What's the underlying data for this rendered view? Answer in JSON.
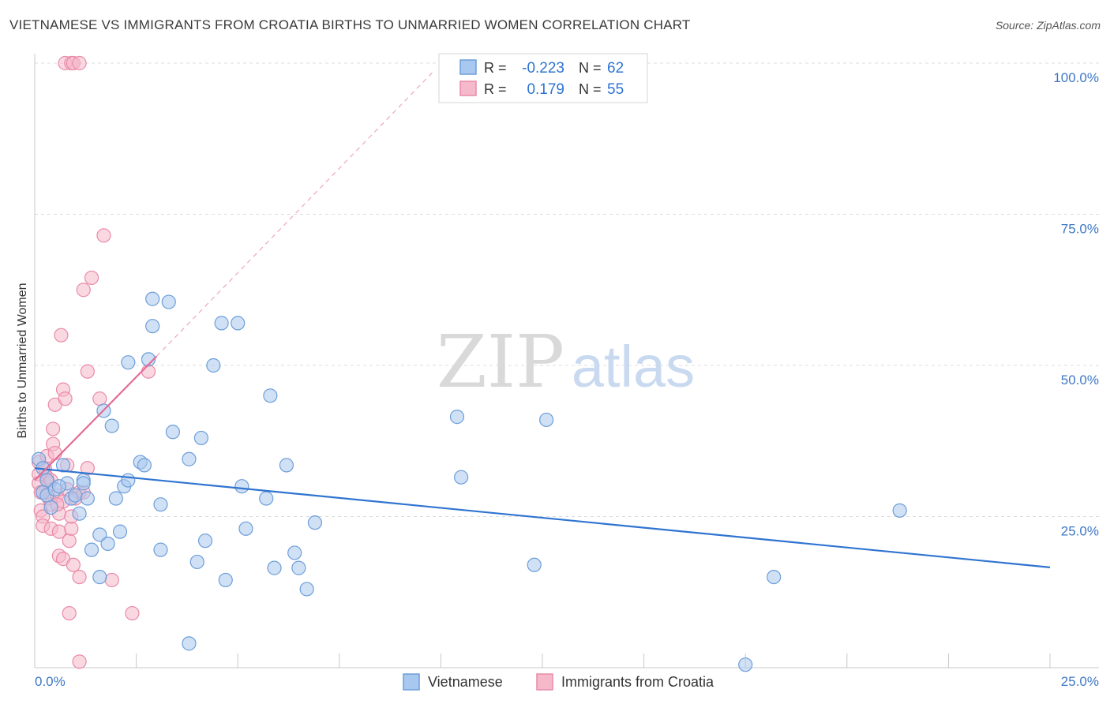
{
  "title": "VIETNAMESE VS IMMIGRANTS FROM CROATIA BIRTHS TO UNMARRIED WOMEN CORRELATION CHART",
  "source": "Source: ZipAtlas.com",
  "watermark": {
    "zip": "ZIP",
    "atlas": "atlas"
  },
  "colors": {
    "blue_fill": "#a9c8ef",
    "blue_stroke": "#6d9ed8",
    "blue_line": "#2f74d0",
    "pink_fill": "#f6b8cb",
    "pink_stroke": "#e98aa7",
    "pink_line": "#e46b94",
    "axis_text": "#3d77c6",
    "grid": "#dcdcdc"
  },
  "legend_top": [
    {
      "r_label": "R =",
      "r_value": "-0.223",
      "n_label": "N =",
      "n_value": "62"
    },
    {
      "r_label": "R =",
      "r_value": "0.179",
      "n_label": "N =",
      "n_value": "55"
    }
  ],
  "chart_data": {
    "type": "scatter",
    "title": "VIETNAMESE VS IMMIGRANTS FROM CROATIA BIRTHS TO UNMARRIED WOMEN CORRELATION CHART",
    "xlabel": "",
    "ylabel": "Births to Unmarried Women",
    "xlim": [
      0,
      25
    ],
    "ylim": [
      0,
      100
    ],
    "x_tick_labels": [
      "0.0%",
      "25.0%"
    ],
    "y_tick_labels": [
      "25.0%",
      "50.0%",
      "75.0%",
      "100.0%"
    ],
    "y_ticks": [
      25,
      50,
      75,
      100
    ],
    "grid": true,
    "legend_position": "bottom-center",
    "series": [
      {
        "name": "Vietnamese",
        "color": "blue",
        "r": -0.223,
        "n": 62,
        "trend": {
          "x": [
            0,
            25
          ],
          "y": [
            33.0,
            16.6
          ],
          "style": "solid"
        },
        "points": [
          [
            0.1,
            34.5
          ],
          [
            0.2,
            33
          ],
          [
            0.3,
            31
          ],
          [
            0.2,
            29
          ],
          [
            0.3,
            28.5
          ],
          [
            0.5,
            29.5
          ],
          [
            0.4,
            26.5
          ],
          [
            0.7,
            33.5
          ],
          [
            0.8,
            30.5
          ],
          [
            0.9,
            28
          ],
          [
            1.0,
            28.5
          ],
          [
            1.2,
            31
          ],
          [
            1.2,
            30.5
          ],
          [
            1.3,
            28
          ],
          [
            1.1,
            25.5
          ],
          [
            1.4,
            19.5
          ],
          [
            1.6,
            15
          ],
          [
            1.6,
            22
          ],
          [
            1.8,
            20.5
          ],
          [
            1.7,
            42.5
          ],
          [
            1.9,
            40
          ],
          [
            2.0,
            28
          ],
          [
            2.1,
            22.5
          ],
          [
            2.2,
            30
          ],
          [
            2.3,
            31
          ],
          [
            2.3,
            50.5
          ],
          [
            2.6,
            34
          ],
          [
            2.7,
            33.5
          ],
          [
            2.8,
            51
          ],
          [
            2.9,
            61
          ],
          [
            2.9,
            56.5
          ],
          [
            3.1,
            27
          ],
          [
            3.1,
            19.5
          ],
          [
            3.3,
            60.5
          ],
          [
            3.4,
            39
          ],
          [
            3.8,
            34.5
          ],
          [
            3.8,
            4
          ],
          [
            4.0,
            17.5
          ],
          [
            4.1,
            38
          ],
          [
            4.2,
            21
          ],
          [
            4.4,
            50
          ],
          [
            4.6,
            57
          ],
          [
            4.7,
            14.5
          ],
          [
            5.0,
            57
          ],
          [
            5.1,
            30
          ],
          [
            5.2,
            23
          ],
          [
            5.7,
            28
          ],
          [
            5.8,
            45
          ],
          [
            5.9,
            16.5
          ],
          [
            6.2,
            33.5
          ],
          [
            6.4,
            19
          ],
          [
            6.5,
            16.5
          ],
          [
            6.7,
            13
          ],
          [
            6.9,
            24
          ],
          [
            10.4,
            41.5
          ],
          [
            10.5,
            31.5
          ],
          [
            12.3,
            17
          ],
          [
            12.6,
            41
          ],
          [
            18.2,
            15
          ],
          [
            21.3,
            26
          ],
          [
            17.5,
            0.5
          ],
          [
            0.6,
            30
          ]
        ]
      },
      {
        "name": "Immigrants from Croatia",
        "color": "pink",
        "r": 0.179,
        "n": 55,
        "trend_solid": {
          "x": [
            0,
            3.0
          ],
          "y": [
            31.0,
            51.5
          ],
          "style": "solid"
        },
        "trend_dashed": {
          "x": [
            3.0,
            9.8
          ],
          "y": [
            51.5,
            98.5
          ],
          "style": "dashed"
        },
        "points": [
          [
            0.1,
            34
          ],
          [
            0.1,
            32
          ],
          [
            0.1,
            30.5
          ],
          [
            0.15,
            29
          ],
          [
            0.15,
            26
          ],
          [
            0.2,
            25
          ],
          [
            0.2,
            23.5
          ],
          [
            0.25,
            33
          ],
          [
            0.3,
            35
          ],
          [
            0.3,
            31.5
          ],
          [
            0.35,
            30.5
          ],
          [
            0.35,
            28
          ],
          [
            0.4,
            27
          ],
          [
            0.4,
            23
          ],
          [
            0.45,
            37
          ],
          [
            0.45,
            39.5
          ],
          [
            0.5,
            35.5
          ],
          [
            0.5,
            43.5
          ],
          [
            0.55,
            28.5
          ],
          [
            0.6,
            25.5
          ],
          [
            0.6,
            22.5
          ],
          [
            0.6,
            18.5
          ],
          [
            0.65,
            55
          ],
          [
            0.7,
            46
          ],
          [
            0.7,
            27.5
          ],
          [
            0.7,
            18
          ],
          [
            0.75,
            44.5
          ],
          [
            0.8,
            29.5
          ],
          [
            0.8,
            33.5
          ],
          [
            0.85,
            9
          ],
          [
            0.85,
            21
          ],
          [
            0.9,
            23
          ],
          [
            0.9,
            25
          ],
          [
            0.95,
            17
          ],
          [
            1.0,
            28
          ],
          [
            1.1,
            29
          ],
          [
            1.1,
            15
          ],
          [
            1.1,
            1
          ],
          [
            1.2,
            29
          ],
          [
            1.3,
            49
          ],
          [
            1.4,
            64.5
          ],
          [
            1.2,
            62.5
          ],
          [
            1.3,
            33
          ],
          [
            1.6,
            44.5
          ],
          [
            1.7,
            71.5
          ],
          [
            1.9,
            14.5
          ],
          [
            2.4,
            9
          ],
          [
            2.8,
            49
          ],
          [
            0.75,
            100
          ],
          [
            0.9,
            100
          ],
          [
            0.95,
            100
          ],
          [
            1.1,
            100
          ],
          [
            0.2,
            29
          ],
          [
            0.4,
            31
          ],
          [
            0.55,
            27
          ]
        ]
      }
    ]
  }
}
